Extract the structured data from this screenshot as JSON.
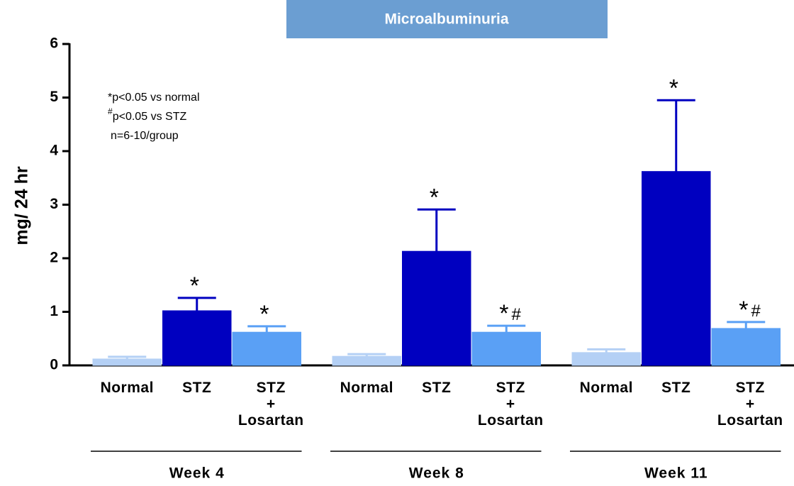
{
  "chart_data": {
    "type": "bar",
    "title": "Microalbuminuria",
    "ylabel": "mg/ 24 hr",
    "categories": [
      "Week 4",
      "Week 8",
      "Week 11"
    ],
    "series": [
      {
        "name": "Normal",
        "color": "#b4d0f5",
        "values": [
          0.12,
          0.17,
          0.24
        ],
        "errors": [
          0.04,
          0.04,
          0.06
        ]
      },
      {
        "name": "STZ",
        "color": "#0000c0",
        "values": [
          1.02,
          2.13,
          3.62
        ],
        "errors": [
          0.24,
          0.78,
          1.33
        ],
        "markers": [
          "*",
          "*",
          "*"
        ]
      },
      {
        "name": "STZ\n+\nLosartan",
        "color": "#5aa0f5",
        "values": [
          0.62,
          0.62,
          0.69
        ],
        "errors": [
          0.11,
          0.12,
          0.12
        ],
        "markers": [
          "*",
          "*#",
          "*#"
        ]
      }
    ],
    "notes": [
      "*p<0.05 vs normal",
      "#p<0.05 vs STZ",
      "n=6-10/group"
    ],
    "ylim": [
      0,
      6
    ],
    "yticks": [
      0,
      1,
      2,
      3,
      4,
      5,
      6
    ]
  }
}
